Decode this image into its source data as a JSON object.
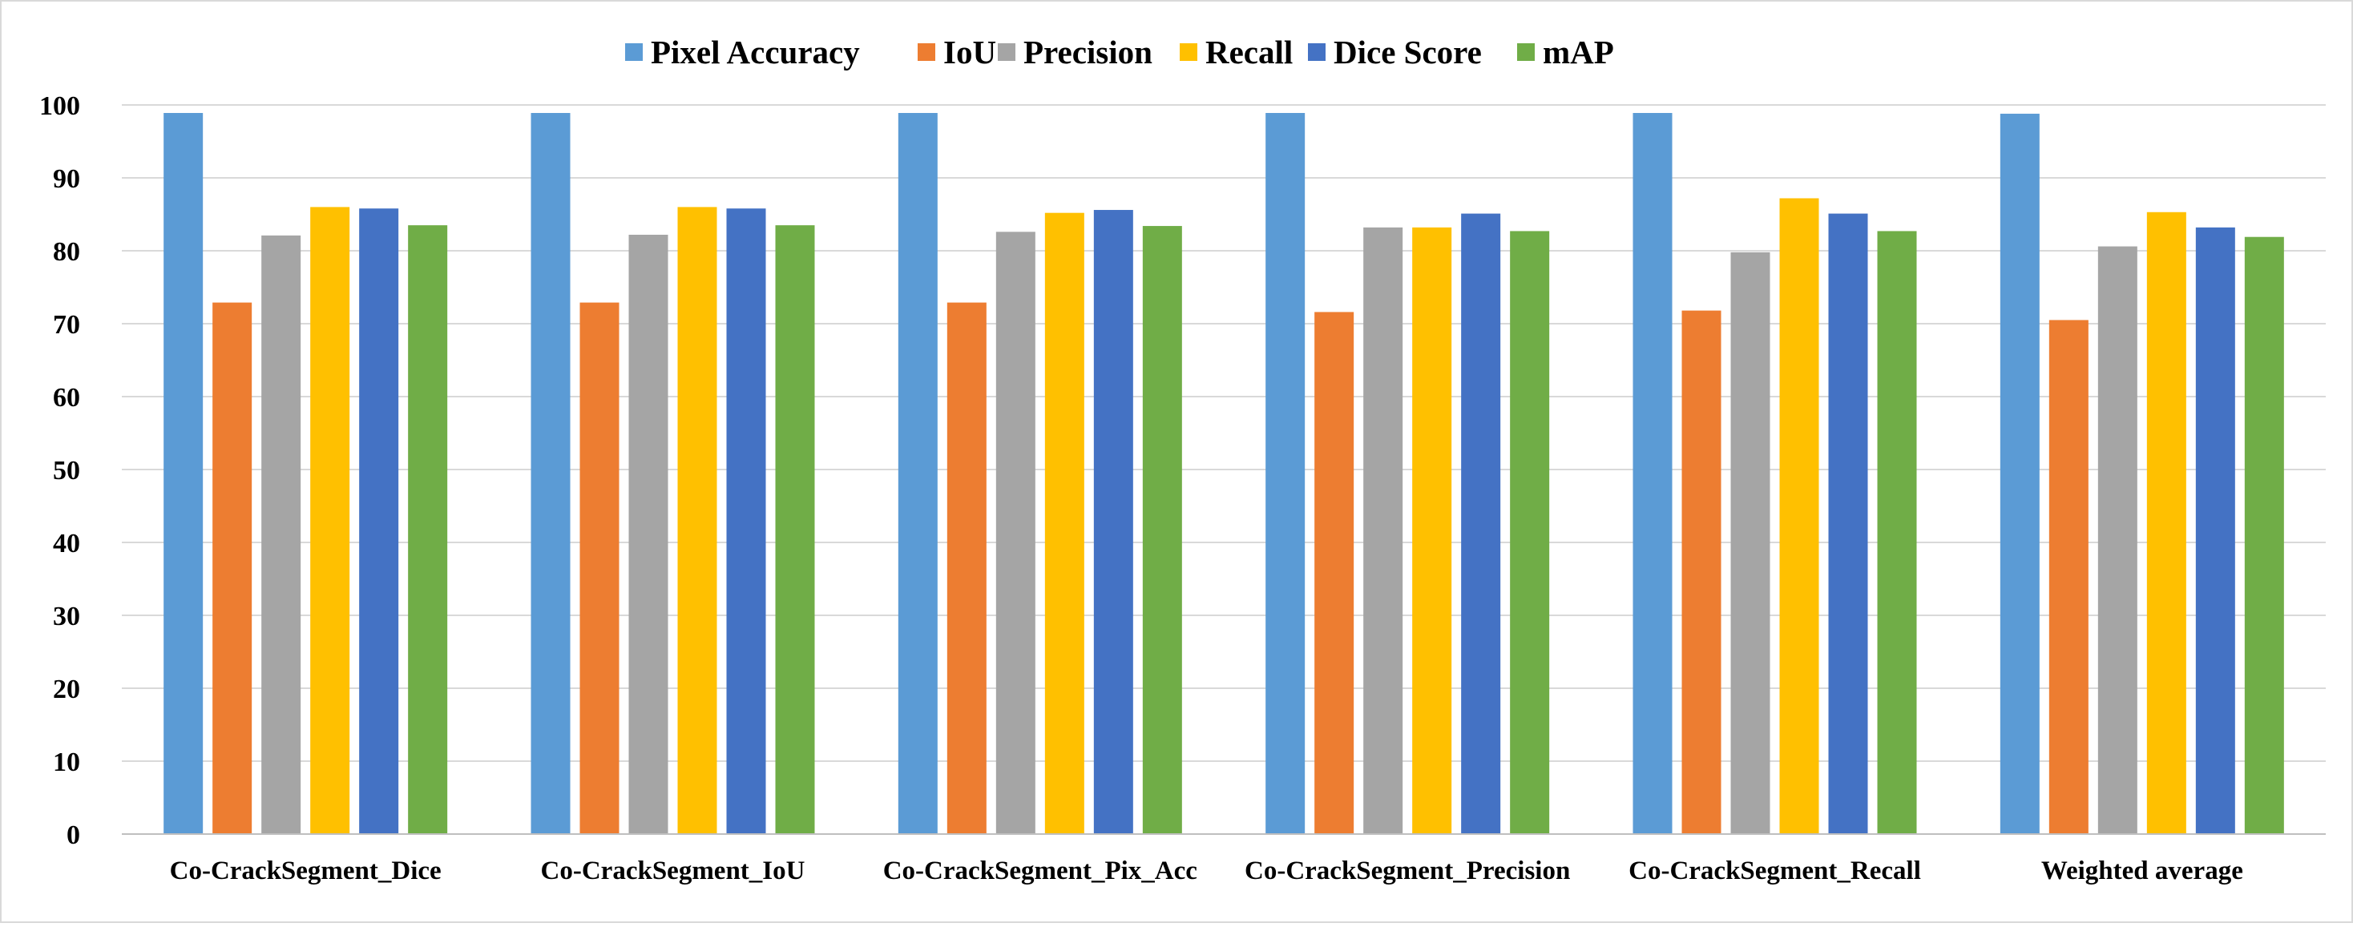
{
  "chart_data": {
    "type": "bar",
    "title": "",
    "xlabel": "",
    "ylabel": "",
    "ylim": [
      0,
      100
    ],
    "yticks": [
      0,
      10,
      20,
      30,
      40,
      50,
      60,
      70,
      80,
      90,
      100
    ],
    "grid": true,
    "legend_position": "top-center",
    "categories": [
      "Co-CrackSegment_Dice",
      "Co-CrackSegment_IoU",
      "Co-CrackSegment_Pix_Acc",
      "Co-CrackSegment_Precision",
      "Co-CrackSegment_Recall",
      "Weighted average"
    ],
    "series": [
      {
        "name": "Pixel Accuracy",
        "color": "#5B9BD5",
        "values": [
          98.9,
          98.9,
          98.9,
          98.9,
          98.9,
          98.8
        ]
      },
      {
        "name": "IoU",
        "color": "#ED7D31",
        "values": [
          72.9,
          72.9,
          72.9,
          71.6,
          71.8,
          70.5
        ]
      },
      {
        "name": "Precision",
        "color": "#A5A5A5",
        "values": [
          82.1,
          82.2,
          82.6,
          83.2,
          79.8,
          80.6
        ]
      },
      {
        "name": "Recall",
        "color": "#FFC000",
        "values": [
          86.0,
          86.0,
          85.2,
          83.2,
          87.2,
          85.3
        ]
      },
      {
        "name": "Dice Score",
        "color": "#4472C4",
        "values": [
          85.8,
          85.8,
          85.6,
          85.1,
          85.1,
          83.2
        ]
      },
      {
        "name": "mAP",
        "color": "#70AD47",
        "values": [
          83.5,
          83.5,
          83.4,
          82.7,
          82.7,
          81.9
        ]
      }
    ]
  }
}
